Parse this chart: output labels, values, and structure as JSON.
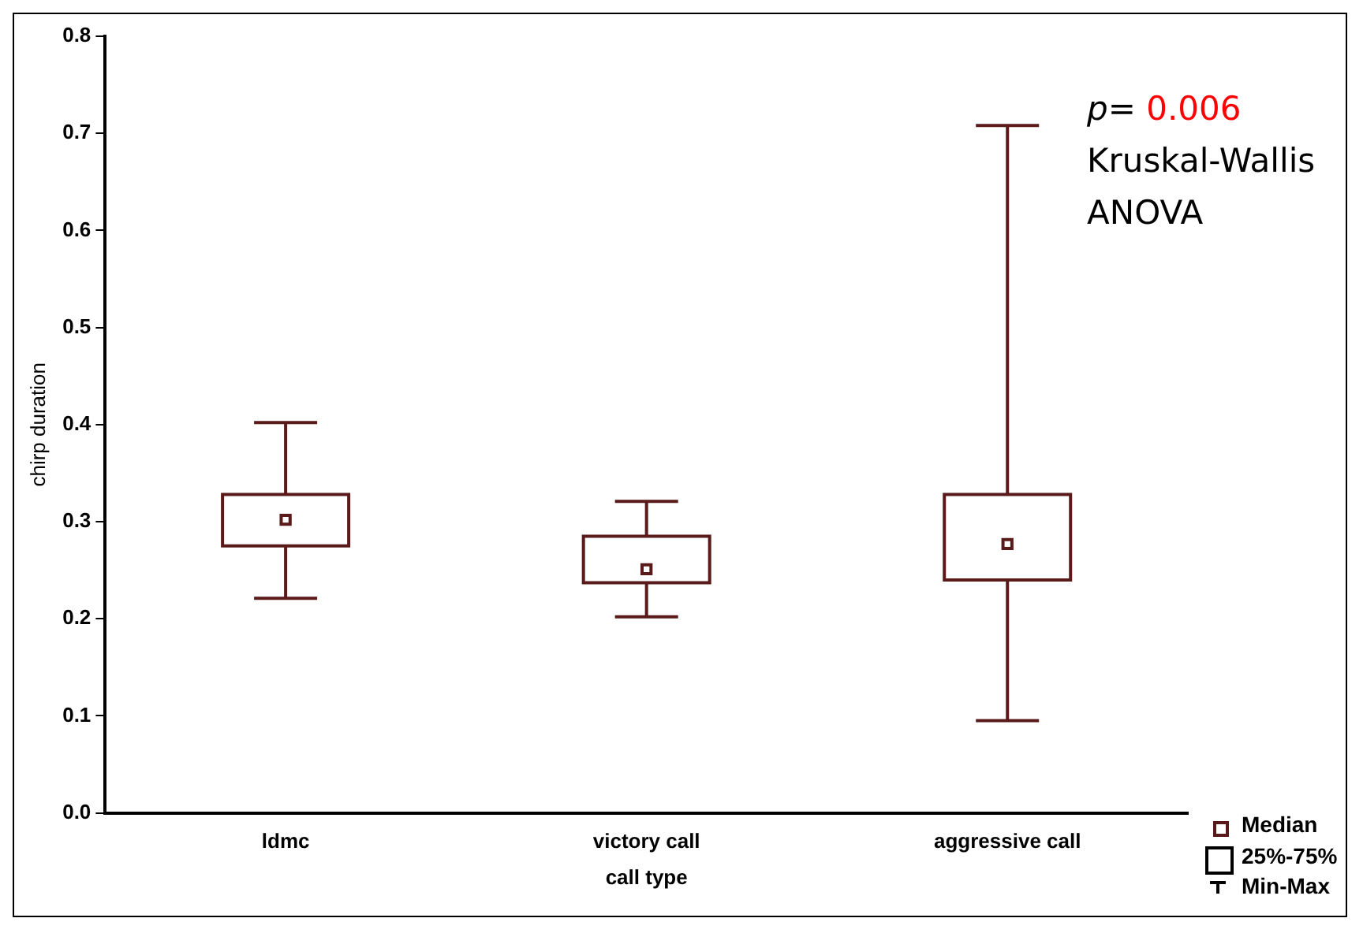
{
  "chart_data": {
    "type": "box",
    "xlabel": "call type",
    "ylabel": "chirp duration",
    "categories": [
      "ldmc",
      "victory call",
      "aggressive call"
    ],
    "color": "#5a1a1a",
    "boxes": [
      {
        "low": 0.221,
        "q1": 0.275,
        "median": 0.302,
        "q3": 0.328,
        "high": 0.402
      },
      {
        "low": 0.202,
        "q1": 0.237,
        "median": 0.251,
        "q3": 0.285,
        "high": 0.321
      },
      {
        "low": 0.095,
        "q1": 0.24,
        "median": 0.277,
        "q3": 0.328,
        "high": 0.708
      }
    ],
    "ylim": [
      0,
      0.8
    ],
    "yticks": [
      {
        "value": 0,
        "label": "0.0"
      },
      0.1,
      0.2,
      0.3,
      0.4,
      0.5,
      0.6,
      0.7,
      0.8
    ],
    "grid": false,
    "marker": "square",
    "annotations": [
      "p= 0.006",
      "Kruskal-Wallis",
      "ANOVA",
      "Median",
      "25%-75%",
      "Min-Max"
    ]
  }
}
